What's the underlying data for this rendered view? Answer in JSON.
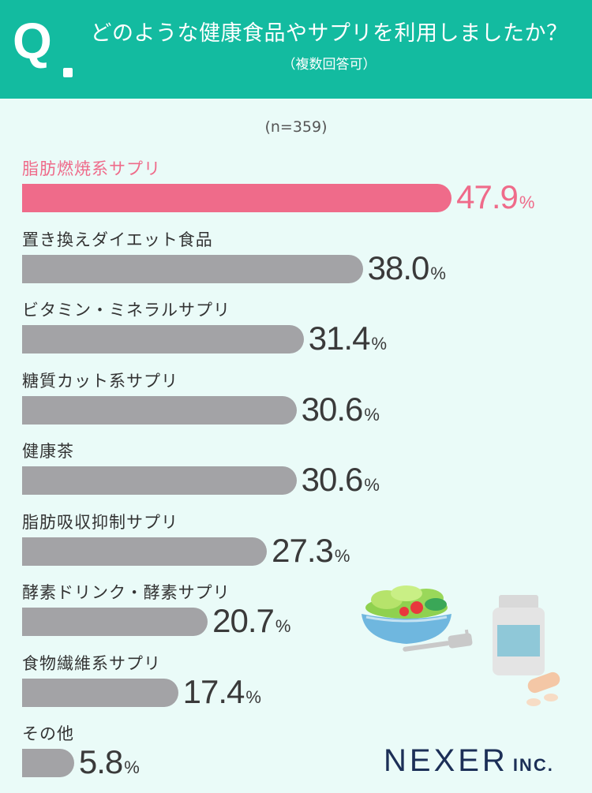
{
  "header": {
    "q_mark": "Q",
    "question": "どのような健康食品やサプリを利用しましたか？",
    "note": "（複数回答可）"
  },
  "sample": "(n=359)",
  "chart_data": {
    "type": "bar",
    "orientation": "horizontal",
    "categories": [
      "脂肪燃焼系サプリ",
      "置き換えダイエット食品",
      "ビタミン・ミネラルサプリ",
      "糖質カット系サプリ",
      "健康茶",
      "脂肪吸収抑制サプリ",
      "酵素ドリンク・酵素サプリ",
      "食物繊維系サプリ",
      "その他"
    ],
    "values": [
      47.9,
      38.0,
      31.4,
      30.6,
      30.6,
      27.3,
      20.7,
      17.4,
      5.8
    ],
    "value_labels": [
      "47.9",
      "38.0",
      "31.4",
      "30.6",
      "30.6",
      "27.3",
      "20.7",
      "17.4",
      "5.8"
    ],
    "unit": "%",
    "highlight_index": 0,
    "colors": {
      "highlight": "#ef6b8a",
      "default": "#a3a3a6"
    }
  },
  "colors": {
    "header": "#13bba0",
    "background": "#eafbf8",
    "logo": "#1c2f57"
  },
  "logo": {
    "main": "NEXER",
    "suffix": "INC."
  },
  "icons": [
    "salad-bowl-icon",
    "fork-icon",
    "supplement-bottle-icon",
    "pill-icon"
  ]
}
